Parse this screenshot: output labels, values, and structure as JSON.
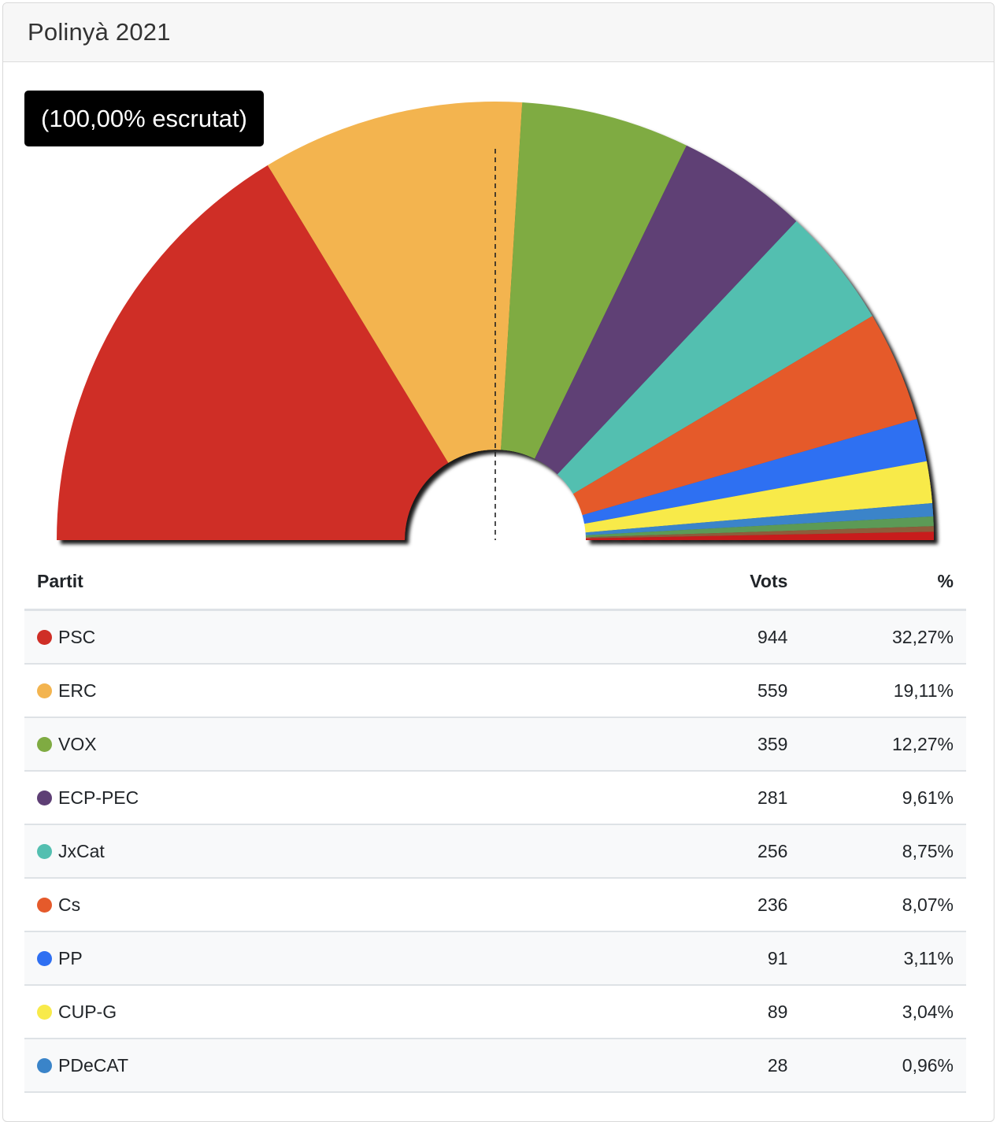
{
  "header": {
    "title": "Polinyà 2021"
  },
  "badge": {
    "label": "(100,00% escrutat)"
  },
  "table": {
    "headers": {
      "party": "Partit",
      "votes": "Vots",
      "percent": "%"
    }
  },
  "chart_data": {
    "type": "pie",
    "style": "semicircle-donut",
    "majority_line": true,
    "parties": [
      {
        "name": "PSC",
        "votes": "944",
        "percent": "32,27%",
        "value": 32.27,
        "color": "#cf2e26"
      },
      {
        "name": "ERC",
        "votes": "559",
        "percent": "19,11%",
        "value": 19.11,
        "color": "#f3b44f"
      },
      {
        "name": "VOX",
        "votes": "359",
        "percent": "12,27%",
        "value": 12.27,
        "color": "#7fab42"
      },
      {
        "name": "ECP-PEC",
        "votes": "281",
        "percent": "9,61%",
        "value": 9.61,
        "color": "#5e3f75"
      },
      {
        "name": "JxCat",
        "votes": "256",
        "percent": "8,75%",
        "value": 8.75,
        "color": "#53bfb0"
      },
      {
        "name": "Cs",
        "votes": "236",
        "percent": "8,07%",
        "value": 8.07,
        "color": "#e55a2b"
      },
      {
        "name": "PP",
        "votes": "91",
        "percent": "3,11%",
        "value": 3.11,
        "color": "#2e6ff2"
      },
      {
        "name": "CUP-G",
        "votes": "89",
        "percent": "3,04%",
        "value": 3.04,
        "color": "#f8ea4a"
      },
      {
        "name": "PDeCAT",
        "votes": "28",
        "percent": "0,96%",
        "value": 0.96,
        "color": "#3a84c9"
      }
    ],
    "extra_slices": [
      {
        "value": 0.7,
        "color": "#5c9a57"
      },
      {
        "value": 0.4,
        "color": "#8e5b3a"
      },
      {
        "value": 0.6,
        "color": "#c81f1f"
      }
    ]
  }
}
